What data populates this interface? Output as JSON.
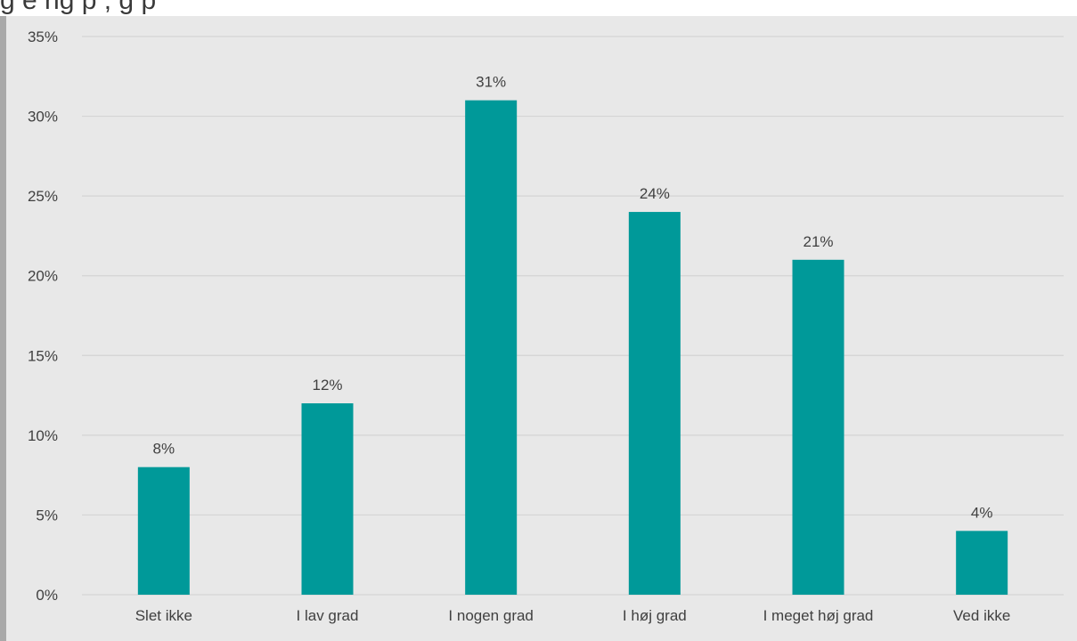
{
  "title_fragment": "g   e   ng                                                                    p      ,                    g          p",
  "chart_data": {
    "type": "bar",
    "categories": [
      "Slet ikke",
      "I lav grad",
      "I nogen grad",
      "I høj grad",
      "I meget høj grad",
      "Ved ikke"
    ],
    "values": [
      8,
      12,
      31,
      24,
      21,
      4
    ],
    "value_labels": [
      "8%",
      "12%",
      "31%",
      "24%",
      "21%",
      "4%"
    ],
    "y_ticks": [
      "0%",
      "5%",
      "10%",
      "15%",
      "20%",
      "25%",
      "30%",
      "35%"
    ],
    "ylim": [
      0,
      35
    ],
    "y_step": 5,
    "grid": true,
    "legend": "none",
    "title": "",
    "xlabel": "",
    "ylabel": ""
  },
  "colors": {
    "bar": "#009999",
    "plot_background": "#e8e8e8",
    "gridline": "#d4d4d4",
    "frame": "#a9a9a9"
  }
}
